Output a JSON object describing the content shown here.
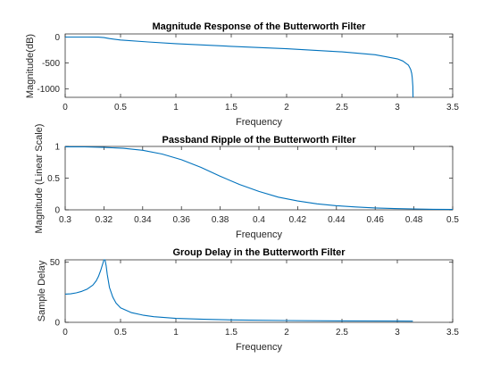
{
  "chart_data": [
    {
      "type": "line",
      "title": "Magnitude Response of the Butterworth Filter",
      "xlabel": "Frequency",
      "ylabel": "Magnitude(dB)",
      "xlim": [
        0,
        3.5
      ],
      "ylim": [
        -1160,
        60
      ],
      "xticks": [
        0,
        0.5,
        1,
        1.5,
        2,
        2.5,
        3,
        3.5
      ],
      "xtick_labels": [
        "0",
        "0.5",
        "1",
        "1.5",
        "2",
        "2.5",
        "3",
        "3.5"
      ],
      "yticks": [
        -1000,
        -500,
        0
      ],
      "ytick_labels": [
        "-1000",
        "-500",
        "0"
      ],
      "grid": false,
      "color": "#0072BD",
      "x": [
        0,
        0.2,
        0.3,
        0.35,
        0.4,
        0.5,
        0.75,
        1,
        1.5,
        2,
        2.5,
        2.8,
        3.0,
        3.05,
        3.1,
        3.12,
        3.13,
        3.135,
        3.14,
        3.1416
      ],
      "y": [
        0,
        0,
        -2,
        -10,
        -30,
        -56,
        -95,
        -127,
        -178,
        -226,
        -285,
        -340,
        -420,
        -460,
        -540,
        -620,
        -700,
        -780,
        -950,
        -1160
      ]
    },
    {
      "type": "line",
      "title": "Passband Ripple of the Butterworth Filter",
      "xlabel": "Frequency",
      "ylabel": "Magnitude (Linear Scale)",
      "xlim": [
        0.3,
        0.5
      ],
      "ylim": [
        0,
        1
      ],
      "xticks": [
        0.3,
        0.32,
        0.34,
        0.36,
        0.38,
        0.4,
        0.42,
        0.44,
        0.46,
        0.48,
        0.5
      ],
      "xtick_labels": [
        "0.3",
        "0.32",
        "0.34",
        "0.36",
        "0.38",
        "0.4",
        "0.42",
        "0.44",
        "0.46",
        "0.48",
        "0.5"
      ],
      "yticks": [
        0,
        0.5,
        1
      ],
      "ytick_labels": [
        "0",
        "0.5",
        "1"
      ],
      "grid": false,
      "color": "#0072BD",
      "x": [
        0.3,
        0.31,
        0.32,
        0.33,
        0.34,
        0.35,
        0.36,
        0.37,
        0.38,
        0.39,
        0.4,
        0.41,
        0.42,
        0.43,
        0.44,
        0.45,
        0.46,
        0.47,
        0.48,
        0.49,
        0.5
      ],
      "y": [
        0.995,
        0.993,
        0.985,
        0.97,
        0.94,
        0.88,
        0.79,
        0.67,
        0.53,
        0.4,
        0.29,
        0.2,
        0.14,
        0.095,
        0.065,
        0.045,
        0.03,
        0.02,
        0.014,
        0.009,
        0.006
      ]
    },
    {
      "type": "line",
      "title": "Group Delay in the Butterworth Filter",
      "xlabel": "Frequency",
      "ylabel": "Sample Delay",
      "xlim": [
        0,
        3.5
      ],
      "ylim": [
        0,
        52
      ],
      "xticks": [
        0,
        0.5,
        1,
        1.5,
        2,
        2.5,
        3,
        3.5
      ],
      "xtick_labels": [
        "0",
        "0.5",
        "1",
        "1.5",
        "2",
        "2.5",
        "3",
        "3.5"
      ],
      "yticks": [
        0,
        50
      ],
      "ytick_labels": [
        "0",
        "50"
      ],
      "grid": false,
      "color": "#0072BD",
      "x": [
        0,
        0.05,
        0.1,
        0.15,
        0.2,
        0.25,
        0.28,
        0.3,
        0.32,
        0.34,
        0.35,
        0.36,
        0.37,
        0.38,
        0.4,
        0.43,
        0.46,
        0.5,
        0.6,
        0.7,
        0.8,
        1,
        1.25,
        1.5,
        2,
        2.5,
        3,
        3.14
      ],
      "y": [
        23.5,
        23.7,
        24.5,
        25.8,
        27.7,
        31,
        34.5,
        38,
        43,
        49,
        52,
        52,
        47,
        40,
        29,
        21,
        16,
        12,
        8,
        6,
        4.7,
        3.3,
        2.5,
        2,
        1.5,
        1.2,
        1.05,
        1
      ]
    }
  ]
}
